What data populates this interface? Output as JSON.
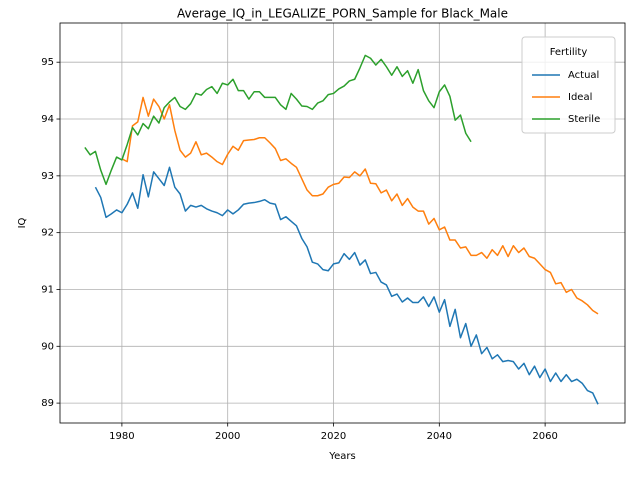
{
  "chart_data": {
    "type": "line",
    "title": "Average_IQ_in_LEGALIZE_PORN_Sample for Black_Male",
    "xlabel": "Years",
    "ylabel": "IQ",
    "legend_title": "Fertility",
    "legend": "upper right",
    "grid": true,
    "xlim": [
      1968.3,
      2075.1
    ],
    "ylim": [
      88.65,
      95.69
    ],
    "xticks": [
      1980,
      2000,
      2020,
      2040,
      2060
    ],
    "yticks": [
      89,
      90,
      91,
      92,
      93,
      94,
      95
    ],
    "x": [
      1973,
      1974,
      1975,
      1976,
      1977,
      1978,
      1979,
      1980,
      1981,
      1982,
      1983,
      1984,
      1985,
      1986,
      1987,
      1988,
      1989,
      1990,
      1991,
      1992,
      1993,
      1994,
      1995,
      1996,
      1997,
      1998,
      1999,
      2000,
      2001,
      2002,
      2003,
      2004,
      2005,
      2006,
      2007,
      2008,
      2009,
      2010,
      2011,
      2012,
      2013,
      2014,
      2015,
      2016,
      2017,
      2018,
      2019,
      2020,
      2021,
      2022,
      2023,
      2024,
      2025,
      2026,
      2027,
      2028,
      2029,
      2030,
      2031,
      2032,
      2033,
      2034,
      2035,
      2036,
      2037,
      2038,
      2039,
      2040,
      2041,
      2042,
      2043,
      2044,
      2045,
      2046,
      2047,
      2048,
      2049,
      2050,
      2051,
      2052,
      2053,
      2054,
      2055,
      2056,
      2057,
      2058,
      2059,
      2060,
      2061,
      2062,
      2063,
      2064,
      2065,
      2066,
      2067,
      2068,
      2069,
      2070
    ],
    "series": [
      {
        "name": "Actual",
        "color": "#1f77b4",
        "values": [
          null,
          null,
          92.8,
          92.62,
          92.27,
          92.33,
          92.4,
          92.35,
          92.5,
          92.7,
          92.43,
          93.02,
          92.63,
          93.07,
          92.95,
          92.83,
          93.15,
          92.8,
          92.68,
          92.38,
          92.48,
          92.45,
          92.48,
          92.42,
          92.38,
          92.35,
          92.3,
          92.4,
          92.33,
          92.4,
          92.5,
          92.52,
          92.53,
          92.55,
          92.58,
          92.52,
          92.5,
          92.23,
          92.28,
          92.2,
          92.12,
          91.9,
          91.75,
          91.48,
          91.45,
          91.35,
          91.33,
          91.45,
          91.47,
          91.63,
          91.53,
          91.65,
          91.43,
          91.52,
          91.28,
          91.3,
          91.13,
          91.08,
          90.88,
          90.92,
          90.78,
          90.85,
          90.77,
          90.77,
          90.87,
          90.7,
          90.87,
          90.6,
          90.82,
          90.35,
          90.65,
          90.15,
          90.4,
          90.0,
          90.2,
          89.87,
          89.98,
          89.78,
          89.85,
          89.73,
          89.75,
          89.73,
          89.6,
          89.7,
          89.5,
          89.65,
          89.45,
          89.6,
          89.38,
          89.53,
          89.38,
          89.5,
          89.38,
          89.42,
          89.35,
          89.22,
          89.18,
          88.98
        ]
      },
      {
        "name": "Ideal",
        "color": "#ff7f0e",
        "values": [
          null,
          null,
          null,
          null,
          null,
          null,
          null,
          93.3,
          93.25,
          93.88,
          93.95,
          94.38,
          94.05,
          94.35,
          94.22,
          94.0,
          94.25,
          93.8,
          93.45,
          93.33,
          93.4,
          93.6,
          93.37,
          93.4,
          93.33,
          93.25,
          93.2,
          93.38,
          93.52,
          93.45,
          93.62,
          93.63,
          93.64,
          93.67,
          93.67,
          93.58,
          93.48,
          93.27,
          93.3,
          93.22,
          93.15,
          92.95,
          92.75,
          92.65,
          92.65,
          92.68,
          92.8,
          92.85,
          92.87,
          92.98,
          92.97,
          93.07,
          93.0,
          93.12,
          92.87,
          92.86,
          92.7,
          92.75,
          92.56,
          92.68,
          92.48,
          92.6,
          92.45,
          92.38,
          92.38,
          92.15,
          92.25,
          92.05,
          92.1,
          91.87,
          91.87,
          91.73,
          91.75,
          91.6,
          91.6,
          91.65,
          91.55,
          91.7,
          91.6,
          91.77,
          91.58,
          91.77,
          91.65,
          91.73,
          91.58,
          91.55,
          91.45,
          91.35,
          91.3,
          91.1,
          91.12,
          90.95,
          91.0,
          90.85,
          90.8,
          90.73,
          90.63,
          90.57
        ]
      },
      {
        "name": "Sterile",
        "color": "#2ca02c",
        "values": [
          93.5,
          93.37,
          93.43,
          93.1,
          92.85,
          93.1,
          93.33,
          93.28,
          93.55,
          93.85,
          93.72,
          93.92,
          93.83,
          94.05,
          93.93,
          94.2,
          94.3,
          94.38,
          94.22,
          94.17,
          94.27,
          94.45,
          94.42,
          94.52,
          94.57,
          94.45,
          94.63,
          94.6,
          94.7,
          94.5,
          94.5,
          94.35,
          94.48,
          94.48,
          94.38,
          94.38,
          94.38,
          94.25,
          94.17,
          94.45,
          94.35,
          94.23,
          94.22,
          94.17,
          94.28,
          94.32,
          94.43,
          94.45,
          94.53,
          94.58,
          94.67,
          94.7,
          94.9,
          95.12,
          95.07,
          94.95,
          95.05,
          94.92,
          94.77,
          94.92,
          94.75,
          94.85,
          94.63,
          94.87,
          94.5,
          94.32,
          94.2,
          94.48,
          94.6,
          94.4,
          93.98,
          94.07,
          93.75,
          93.6,
          null,
          null,
          null,
          null,
          null,
          null,
          null,
          null,
          null,
          null,
          null,
          null,
          null,
          null,
          null,
          null,
          null,
          null,
          null,
          null,
          null,
          null,
          null,
          null
        ]
      }
    ]
  }
}
